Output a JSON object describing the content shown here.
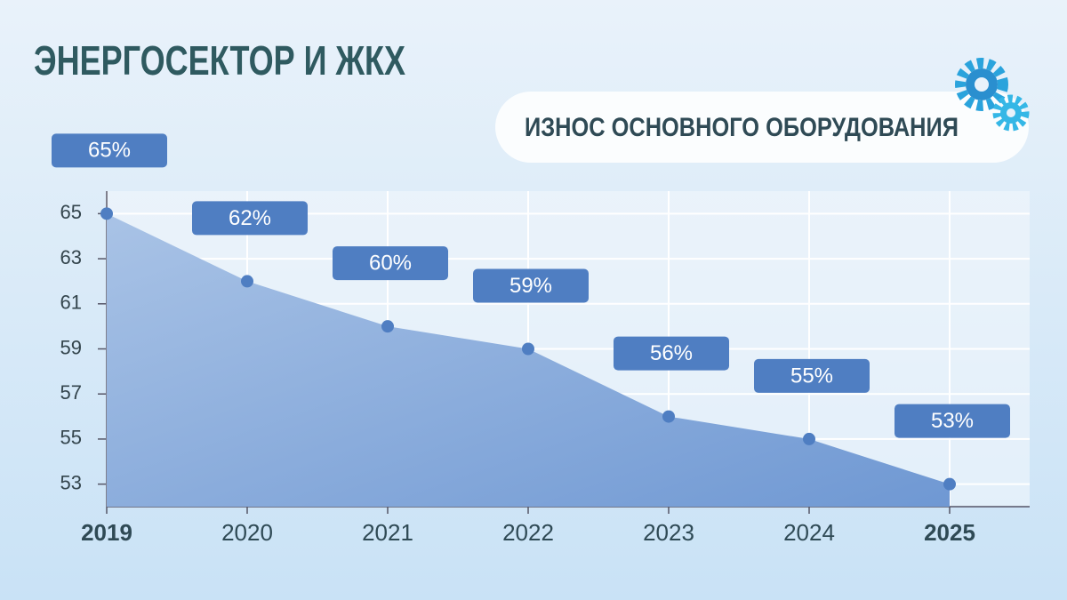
{
  "chart_data": {
    "type": "area",
    "title": "ЭНЕРГОСЕКТОР И ЖКХ",
    "subtitle": "ИЗНОС ОСНОВНОГО ОБОРУДОВАНИЯ",
    "categories": [
      "2019",
      "2020",
      "2021",
      "2022",
      "2023",
      "2024",
      "2025"
    ],
    "values": [
      65,
      62,
      60,
      59,
      56,
      55,
      53
    ],
    "value_labels": [
      "65%",
      "62%",
      "60%",
      "59%",
      "56%",
      "55%",
      "53%"
    ],
    "color": "#4f7ec2",
    "ylim": [
      52,
      66
    ],
    "yticks": [
      53,
      55,
      57,
      59,
      61,
      63,
      65
    ],
    "grid": true
  }
}
